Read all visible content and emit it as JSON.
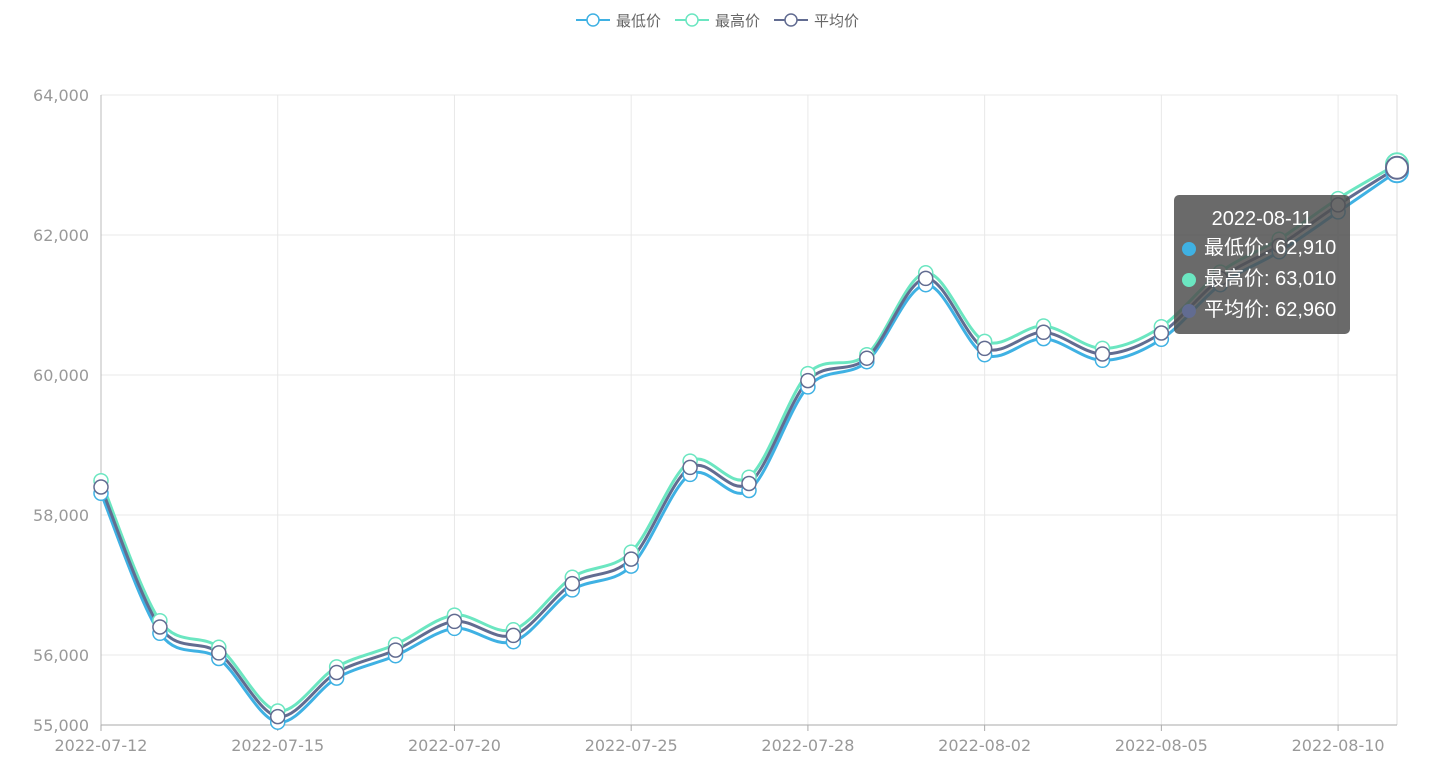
{
  "chart_data": {
    "type": "line",
    "x": [
      "2022-07-12",
      "2022-07-13",
      "2022-07-14",
      "2022-07-15",
      "2022-07-18",
      "2022-07-19",
      "2022-07-20",
      "2022-07-21",
      "2022-07-22",
      "2022-07-25",
      "2022-07-26",
      "2022-07-27",
      "2022-07-28",
      "2022-07-29",
      "2022-08-01",
      "2022-08-02",
      "2022-08-03",
      "2022-08-04",
      "2022-08-05",
      "2022-08-08",
      "2022-08-09",
      "2022-08-10",
      "2022-08-11"
    ],
    "x_tick_labels": [
      "2022-07-12",
      "2022-07-15",
      "2022-07-20",
      "2022-07-25",
      "2022-07-28",
      "2022-08-02",
      "2022-08-05",
      "2022-08-10"
    ],
    "y_tick_labels": [
      "55,000",
      "56,000",
      "58,000",
      "60,000",
      "62,000",
      "64,000"
    ],
    "y_ticks": [
      55000,
      56000,
      58000,
      60000,
      62000,
      64000
    ],
    "ylim": [
      55000,
      64000
    ],
    "series": [
      {
        "name": "最低价",
        "color": "#3fb1e3",
        "values": [
          58310,
          56310,
          55950,
          55040,
          55670,
          55990,
          56380,
          56190,
          56930,
          57270,
          58580,
          58350,
          59830,
          60190,
          61290,
          60290,
          60520,
          60210,
          60510,
          61290,
          61760,
          62330,
          62910
        ]
      },
      {
        "name": "最高价",
        "color": "#6be6c1",
        "values": [
          58490,
          56490,
          56110,
          55200,
          55830,
          56150,
          56570,
          56360,
          57110,
          57470,
          58770,
          58540,
          60020,
          60290,
          61460,
          60480,
          60700,
          60380,
          60690,
          61470,
          61940,
          62520,
          63010
        ]
      },
      {
        "name": "平均价",
        "color": "#626c91",
        "values": [
          58400,
          56400,
          56030,
          55120,
          55750,
          56070,
          56480,
          56280,
          57020,
          57370,
          58680,
          58450,
          59920,
          60240,
          61380,
          60380,
          60610,
          60300,
          60600,
          61380,
          61850,
          62430,
          62960
        ]
      }
    ],
    "grid": true,
    "legend_position": "top-center"
  },
  "tooltip": {
    "title": "2022-08-11",
    "rows": [
      {
        "label": "最低价: 62,910",
        "color": "#3fb1e3"
      },
      {
        "label": "最高价: 63,010",
        "color": "#6be6c1"
      },
      {
        "label": "平均价: 62,960",
        "color": "#626c91"
      }
    ]
  }
}
